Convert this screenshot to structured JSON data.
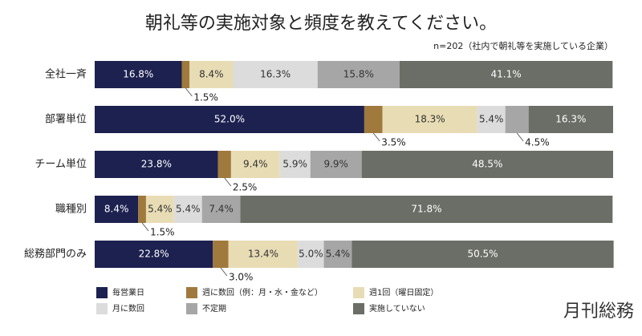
{
  "chart_data": {
    "type": "stacked-bar-horizontal",
    "title": "朝礼等の実施対象と頻度を教えてください。",
    "subtitle": "n=202（社内で朝礼等を実施している企業）",
    "brand": "月刊総務",
    "xlim": [
      0,
      100
    ],
    "categories": [
      "全社一斉",
      "部署単位",
      "チーム単位",
      "職種別",
      "総務部門のみ"
    ],
    "series": [
      {
        "name": "毎営業日",
        "color": "#1c2150",
        "values": [
          16.8,
          52.0,
          23.8,
          8.4,
          22.8
        ],
        "value_labels": [
          "16.8%",
          "52.0%",
          "23.8%",
          "8.4%",
          "22.8%"
        ]
      },
      {
        "name": "週に数回（例：月・水・金など）",
        "color": "#a07a3c",
        "values": [
          1.5,
          3.5,
          2.5,
          1.5,
          3.0
        ],
        "value_labels": [
          "1.5%",
          "3.5%",
          "2.5%",
          "1.5%",
          "3.0%"
        ]
      },
      {
        "name": "週1回（曜日固定）",
        "color": "#e8dcb5",
        "values": [
          8.4,
          18.3,
          9.4,
          5.4,
          13.4
        ],
        "value_labels": [
          "8.4%",
          "18.3%",
          "9.4%",
          "5.4%",
          "13.4%"
        ]
      },
      {
        "name": "月に数回",
        "color": "#dcdcdc",
        "values": [
          16.3,
          5.4,
          5.9,
          5.4,
          5.0
        ],
        "value_labels": [
          "16.3%",
          "5.4%",
          "5.9%",
          "5.4%",
          "5.0%"
        ]
      },
      {
        "name": "不定期",
        "color": "#a6a6a6",
        "values": [
          15.8,
          4.5,
          9.9,
          7.4,
          5.4
        ],
        "value_labels": [
          "15.8%",
          "4.5%",
          "9.9%",
          "7.4%",
          "5.4%"
        ]
      },
      {
        "name": "実施していない",
        "color": "#6b6e66",
        "values": [
          41.1,
          16.3,
          48.5,
          71.8,
          50.5
        ],
        "value_labels": [
          "41.1%",
          "16.3%",
          "48.5%",
          "71.8%",
          "50.5%"
        ]
      }
    ]
  }
}
